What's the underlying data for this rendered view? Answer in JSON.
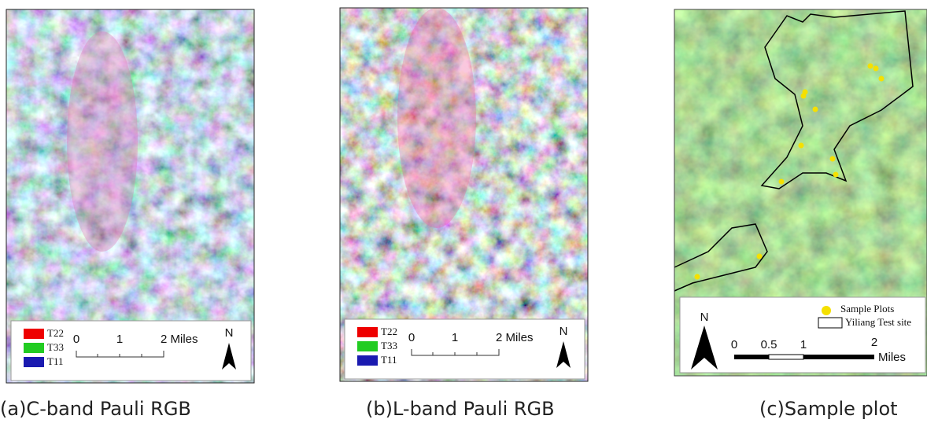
{
  "panels": [
    {
      "legend": [
        "T22",
        "T33",
        "T11"
      ],
      "scale": [
        "0",
        "1",
        "2 Miles"
      ],
      "north": "N",
      "caption": "(a)C-band Pauli RGB"
    },
    {
      "legend": [
        "T22",
        "T33",
        "T11"
      ],
      "scale": [
        "0",
        "1",
        "2 Miles"
      ],
      "north": "N",
      "caption": "(b)L-band Pauli RGB"
    },
    {
      "legend": [
        "Sample Plots",
        "Yiliang Test site"
      ],
      "scale": [
        "0",
        "0.5",
        "1",
        "2"
      ],
      "scale_unit": "Miles",
      "north": "N",
      "caption": "(c)Sample plot"
    }
  ]
}
